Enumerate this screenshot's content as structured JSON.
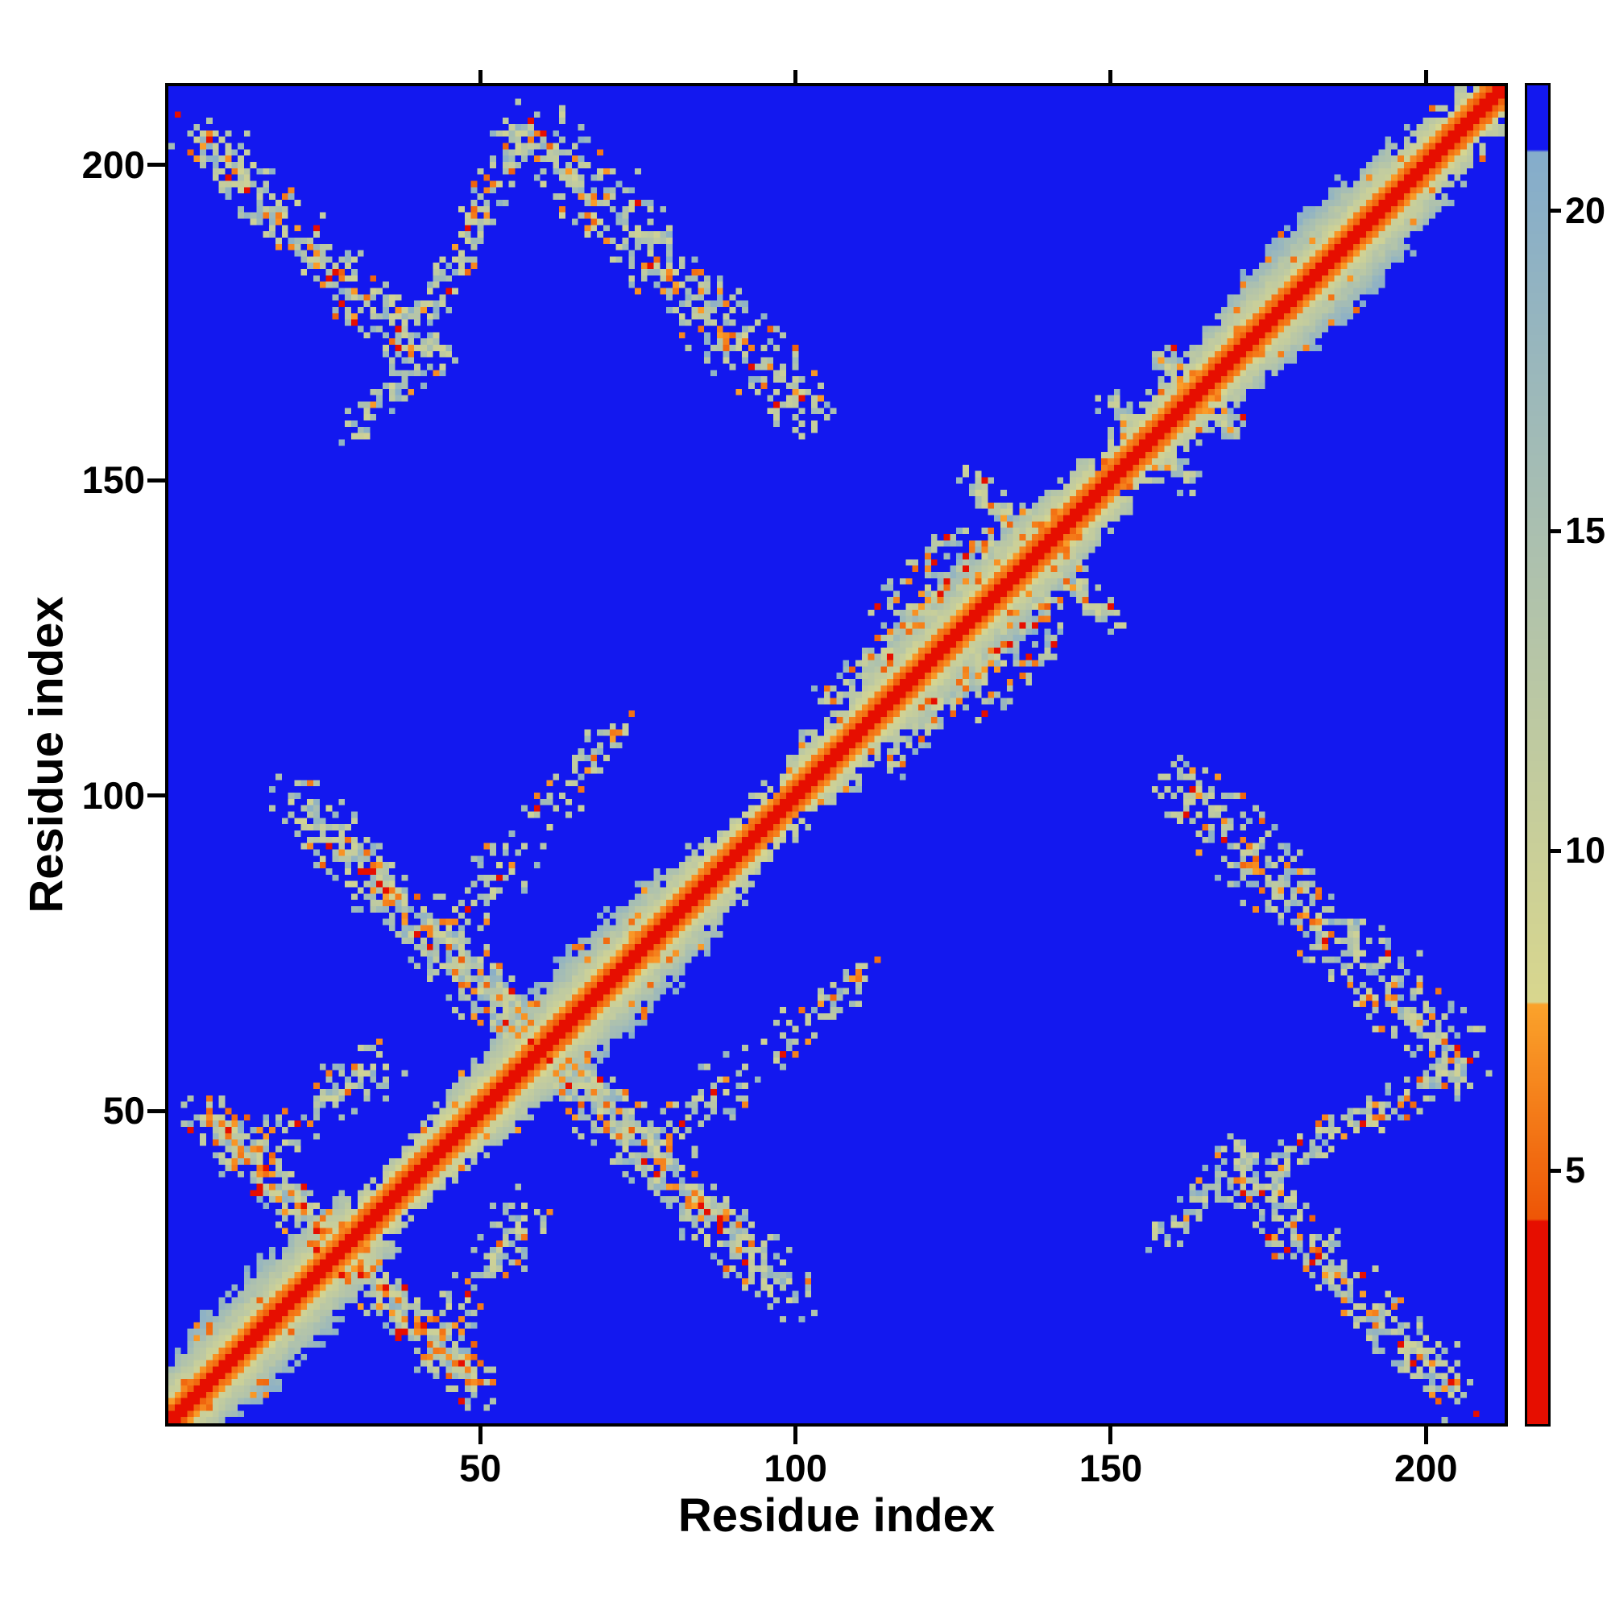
{
  "figure": {
    "xlabel": "Residue index",
    "ylabel": "Residue index",
    "x_ticks": [
      50,
      100,
      150,
      200
    ],
    "y_ticks": [
      50,
      100,
      150,
      200
    ],
    "colorbar_ticks": [
      5,
      10,
      15,
      20
    ],
    "background_color": "#ffffff",
    "axis_color": "#000000",
    "field_blue": "#1318ef"
  },
  "chart_data": {
    "type": "heatmap",
    "title": "",
    "xlabel": "Residue index",
    "ylabel": "Residue index",
    "n_residues": 212,
    "x_range": [
      0,
      213
    ],
    "y_range": [
      0,
      213
    ],
    "value_range": [
      1,
      22
    ],
    "colorbar_ticks": [
      5,
      10,
      15,
      20
    ],
    "background_value": 25,
    "colormap": [
      {
        "upto": 4.2,
        "color": "#e60e00"
      },
      {
        "upto": 7.6,
        "gradient": [
          "#ee5607",
          "#fba42c"
        ]
      },
      {
        "upto": 21.0,
        "gradient": [
          "#d9d78e",
          "#85adcc"
        ]
      },
      {
        "upto": 99,
        "color": "#1318ef"
      }
    ],
    "note": "Symmetric residue-residue distance map: red/orange along the main diagonal (short distances), speckled grey-green off-diagonal contact clusters, blue elsewhere (long distances). Clusters encoded as line segments [x1,y1,x2,y2,half_width,density] in residue coordinates.",
    "diagonal_band": {
      "half_width": 9,
      "red_half_width": 1,
      "orange_half_width": 3
    },
    "contact_segments": [
      [
        6,
        50,
        50,
        6,
        3,
        0.5
      ],
      [
        12,
        42,
        34,
        58,
        4,
        0.32
      ],
      [
        24,
        96,
        100,
        20,
        4,
        0.42
      ],
      [
        42,
        76,
        58,
        92,
        4,
        0.3
      ],
      [
        58,
        96,
        72,
        110,
        3,
        0.28
      ],
      [
        104,
        114,
        134,
        144,
        2,
        0.45
      ],
      [
        112,
        128,
        126,
        142,
        2,
        0.3
      ],
      [
        118,
        126,
        132,
        140,
        2,
        0.35
      ],
      [
        128,
        150,
        150,
        128,
        2,
        0.35
      ],
      [
        150,
        163,
        163,
        150,
        2,
        0.3
      ],
      [
        158,
        170,
        170,
        158,
        2,
        0.3
      ],
      [
        4,
        206,
        40,
        170,
        4,
        0.5
      ],
      [
        40,
        172,
        56,
        206,
        3,
        0.4
      ],
      [
        58,
        206,
        102,
        160,
        5,
        0.48
      ],
      [
        30,
        158,
        44,
        172,
        3,
        0.28
      ]
    ],
    "seed": 7
  }
}
